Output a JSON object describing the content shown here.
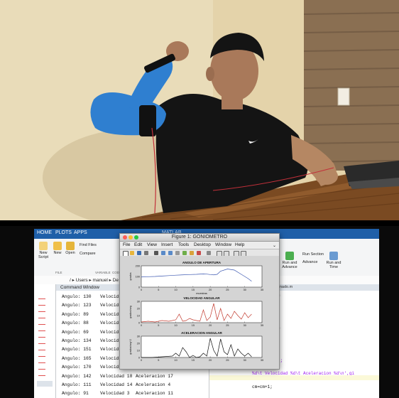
{
  "figure": {
    "title": "Figure 1: GONIOMETRO",
    "menu": [
      "File",
      "Edit",
      "View",
      "Insert",
      "Tools",
      "Desktop",
      "Window",
      "Help"
    ],
    "plots": [
      {
        "title": "ANGULO DE APERTURA",
        "ylabel": "grados",
        "xlabel": "muestras",
        "ylim": [
          0,
          200
        ],
        "yticks": [
          "200",
          "100",
          "0"
        ],
        "xticks": [
          "0",
          "5",
          "10",
          "15",
          "20",
          "25",
          "30",
          "35"
        ],
        "color": "#3a56b0",
        "x": [
          0,
          2,
          4,
          6,
          8,
          10,
          12,
          14,
          16,
          18,
          19,
          20,
          21,
          22,
          23,
          25,
          27,
          29,
          31,
          32
        ],
        "y": [
          95,
          98,
          100,
          104,
          108,
          112,
          115,
          118,
          120,
          124,
          122,
          118,
          115,
          120,
          150,
          170,
          160,
          120,
          80,
          55
        ]
      },
      {
        "title": "VELOCIDAD ANGULAR",
        "ylabel": "grados/seg",
        "xlabel": "",
        "ylim": [
          0,
          30
        ],
        "yticks": [
          "30",
          "20",
          "10",
          "0"
        ],
        "xticks": [
          "0",
          "5",
          "10",
          "15",
          "20",
          "25",
          "30",
          "35"
        ],
        "color": "#c23a2e",
        "x": [
          0,
          2,
          4,
          6,
          8,
          10,
          11,
          12,
          13,
          14,
          15,
          16,
          17,
          18,
          19,
          20,
          21,
          22,
          23,
          24,
          25,
          26,
          27,
          28,
          29,
          30,
          31,
          32
        ],
        "y": [
          1,
          2,
          1,
          3,
          2,
          4,
          12,
          2,
          3,
          6,
          4,
          3,
          2,
          18,
          3,
          8,
          27,
          4,
          20,
          3,
          12,
          6,
          16,
          10,
          5,
          14,
          7,
          12
        ]
      },
      {
        "title": "ACELERACION ANGULAR",
        "ylabel": "grados/seg^2",
        "xlabel": "",
        "ylim": [
          0,
          30
        ],
        "yticks": [
          "30",
          "20",
          "10",
          "0"
        ],
        "xticks": [
          "0",
          "5",
          "10",
          "15",
          "20",
          "25",
          "30",
          "35"
        ],
        "color": "#111111",
        "x": [
          0,
          3,
          6,
          9,
          10,
          11,
          12,
          13,
          14,
          15,
          16,
          17,
          18,
          19,
          20,
          21,
          22,
          23,
          24,
          25,
          26,
          27,
          28,
          29,
          30,
          31,
          32
        ],
        "y": [
          0,
          0,
          1,
          2,
          6,
          2,
          14,
          8,
          0,
          3,
          0,
          1,
          6,
          2,
          27,
          10,
          2,
          26,
          8,
          4,
          18,
          2,
          12,
          6,
          2,
          6,
          1
        ]
      }
    ]
  },
  "matlab": {
    "window_title": "MATLAB",
    "ribbon_tabs": [
      "HOME",
      "PLOTS",
      "APPS"
    ],
    "ribbon_buttons": [
      "New Script",
      "New",
      "Open",
      "Find Files",
      "Compare"
    ],
    "ribbon_sections": [
      "FILE",
      "VARIABLE",
      "CODE"
    ],
    "right_buttons": [
      "Run and Advance",
      "Run Section",
      "Advance",
      "Run and Time"
    ],
    "path_text": "/ ▸ Users ▸ manuel ▸ De",
    "command_window_title": "Command Window",
    "command_rows": [
      {
        "a": "Angulo: 130",
        "v": "Velocidad",
        "acc": ""
      },
      {
        "a": "Angulo: 123",
        "v": "Velocidad",
        "acc": ""
      },
      {
        "a": "Angulo: 89",
        "v": "Velocidad",
        "acc": ""
      },
      {
        "a": "Angulo: 88",
        "v": "Velocidad",
        "acc": ""
      },
      {
        "a": "Angulo: 69",
        "v": "Velocidad",
        "acc": ""
      },
      {
        "a": "Angulo: 134",
        "v": "Velocidad",
        "acc": ""
      },
      {
        "a": "Angulo: 151",
        "v": "Velocidad",
        "acc": ""
      },
      {
        "a": "Angulo: 165",
        "v": "Velocidad",
        "acc": ""
      },
      {
        "a": "Angulo: 170",
        "v": "Velocidad",
        "acc": ""
      },
      {
        "a": "Angulo: 142",
        "v": "Velocidad 18",
        "acc": "Aceleracion 17"
      },
      {
        "a": "Angulo: 111",
        "v": "Velocidad 14",
        "acc": "Aceleracion 4"
      },
      {
        "a": "Angulo: 91",
        "v": "Velocidad 3",
        "acc": "Aceleracion 11"
      }
    ],
    "editor_path": "ktop/SOFWARE/pruebaSoftFinal/Terminado.m",
    "editor_lines": [
      "aceleraci?n",
      "",
      ")-v(cm-1));",
      "",
      "",
      "aceleraci?n",
      "",
      "",
      "",
      "",
      "N ANGULAR');",
      "2');",
      "%d\\t Velocidad %d\\t Aceleracion %d\\n',gi",
      "",
      "cm=cm+1;",
      ""
    ]
  }
}
